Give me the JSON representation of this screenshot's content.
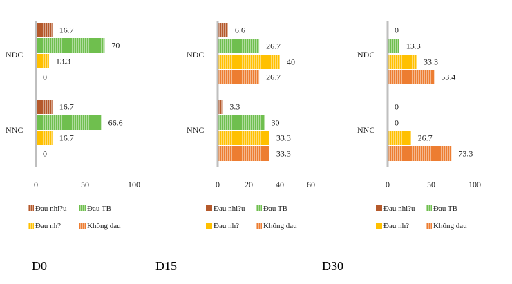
{
  "colors": {
    "dau_nhieu": "#b5592b",
    "dau_tb": "#6fbf4e",
    "dau_nhe": "#ffc000",
    "khong_dau": "#ed7d31",
    "axis": "#bfbfbf"
  },
  "panel_labels": [
    "D0",
    "D15",
    "D30"
  ],
  "chart_data": [
    {
      "type": "bar",
      "orientation": "horizontal",
      "title": "",
      "categories": [
        "NĐC",
        "NNC"
      ],
      "xlim": [
        0,
        100
      ],
      "xticks": [
        0,
        50,
        100
      ],
      "grid": false,
      "legend": "bottom",
      "series": [
        {
          "name": "Đau nhi?u",
          "color_key": "dau_nhieu",
          "values": [
            16.7,
            16.7
          ],
          "labels": [
            "16.7",
            "16.7"
          ]
        },
        {
          "name": "Đau TB",
          "color_key": "dau_tb",
          "values": [
            70,
            66.6
          ],
          "labels": [
            "70",
            "66.6"
          ]
        },
        {
          "name": "Đau nh?",
          "color_key": "dau_nhe",
          "values": [
            13.3,
            16.7
          ],
          "labels": [
            "13.3",
            "16.7"
          ]
        },
        {
          "name": "Không dau",
          "color_key": "khong_dau",
          "values": [
            0,
            0
          ],
          "labels": [
            "0",
            "0"
          ]
        }
      ]
    },
    {
      "type": "bar",
      "orientation": "horizontal",
      "title": "",
      "categories": [
        "NĐC",
        "NNC"
      ],
      "xlim": [
        0,
        60
      ],
      "xticks": [
        0,
        20,
        40,
        60
      ],
      "grid": false,
      "legend": "bottom",
      "series": [
        {
          "name": "Đau nhi?u",
          "color_key": "dau_nhieu",
          "values": [
            6.6,
            3.3
          ],
          "labels": [
            "6.6",
            "3.3"
          ]
        },
        {
          "name": "Đau TB",
          "color_key": "dau_tb",
          "values": [
            26.7,
            30
          ],
          "labels": [
            "26.7",
            "30"
          ]
        },
        {
          "name": "Đau nh?",
          "color_key": "dau_nhe",
          "values": [
            40,
            33.3
          ],
          "labels": [
            "40",
            "33.3"
          ]
        },
        {
          "name": "Không dau",
          "color_key": "khong_dau",
          "values": [
            26.7,
            33.3
          ],
          "labels": [
            "26.7",
            "33.3"
          ]
        }
      ]
    },
    {
      "type": "bar",
      "orientation": "horizontal",
      "title": "",
      "categories": [
        "NĐC",
        "NNC"
      ],
      "xlim": [
        0,
        100
      ],
      "xticks": [
        0,
        50,
        100
      ],
      "grid": false,
      "legend": "bottom",
      "series": [
        {
          "name": "Đau nhi?u",
          "color_key": "dau_nhieu",
          "values": [
            0,
            0
          ],
          "labels": [
            "0",
            "0"
          ]
        },
        {
          "name": "Đau TB",
          "color_key": "dau_tb",
          "values": [
            13.3,
            0
          ],
          "labels": [
            "13.3",
            "0"
          ]
        },
        {
          "name": "Đau nh?",
          "color_key": "dau_nhe",
          "values": [
            33.3,
            26.7
          ],
          "labels": [
            "33.3",
            "26.7"
          ]
        },
        {
          "name": "Không dau",
          "color_key": "khong_dau",
          "values": [
            53.4,
            73.3
          ],
          "labels": [
            "53.4",
            "73.3"
          ]
        }
      ]
    }
  ]
}
